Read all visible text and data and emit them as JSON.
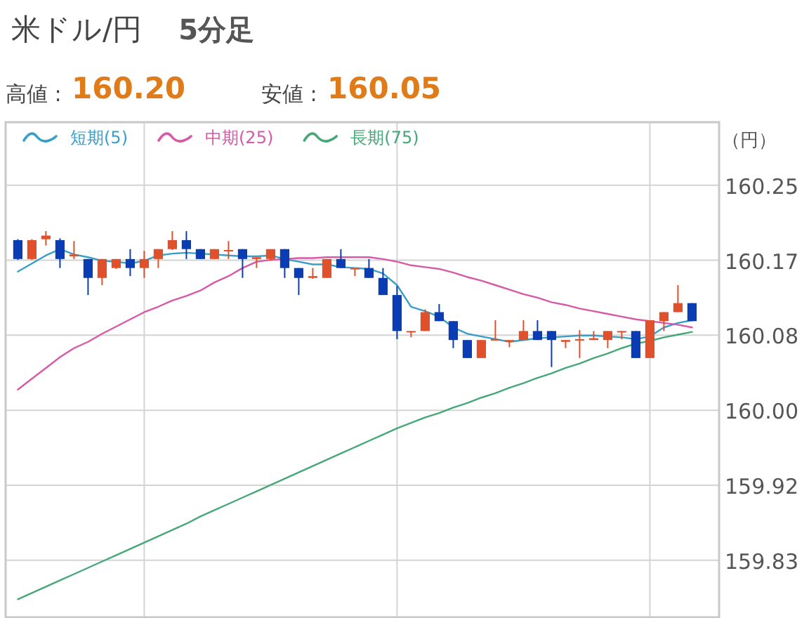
{
  "chart_data": {
    "type": "candlestick",
    "title": "米ドル/円",
    "subtitle": "5分足",
    "ylabel": "（円）",
    "annotations": [
      "高値 :",
      "160.20",
      "安値 :",
      "160.05"
    ],
    "categories": [
      null,
      null,
      null,
      null,
      null,
      null,
      null,
      null,
      null,
      null,
      null,
      null,
      null,
      null,
      null,
      null,
      null,
      null,
      null,
      null,
      null,
      null,
      null,
      null,
      null,
      null,
      null,
      null,
      null,
      null,
      null,
      null,
      null,
      null,
      null,
      null,
      null,
      null,
      null,
      null,
      null,
      null,
      null,
      null,
      null,
      null,
      null,
      null,
      null
    ],
    "ohlc": [
      [
        160.189,
        160.19,
        160.167,
        160.168
      ],
      [
        160.168,
        160.19,
        160.167,
        160.189
      ],
      [
        160.19,
        160.199,
        160.183,
        160.194
      ],
      [
        160.189,
        160.191,
        160.158,
        160.168
      ],
      [
        160.171,
        160.188,
        160.168,
        160.173
      ],
      [
        160.168,
        160.168,
        160.128,
        160.147
      ],
      [
        160.147,
        160.168,
        160.139,
        160.168
      ],
      [
        160.158,
        160.168,
        160.157,
        160.168
      ],
      [
        160.168,
        160.179,
        160.149,
        160.158
      ],
      [
        160.158,
        160.177,
        160.147,
        160.168
      ],
      [
        160.168,
        160.179,
        160.158,
        160.179
      ],
      [
        160.179,
        160.199,
        160.178,
        160.189
      ],
      [
        160.189,
        160.199,
        160.168,
        160.179
      ],
      [
        160.179,
        160.179,
        160.168,
        160.168
      ],
      [
        160.168,
        160.179,
        160.168,
        160.179
      ],
      [
        160.177,
        160.188,
        160.168,
        160.178
      ],
      [
        160.179,
        160.179,
        160.147,
        160.168
      ],
      [
        160.168,
        160.17,
        160.158,
        160.17
      ],
      [
        160.168,
        160.179,
        160.166,
        160.179
      ],
      [
        160.179,
        160.179,
        160.147,
        160.158
      ],
      [
        160.158,
        160.158,
        160.128,
        160.147
      ],
      [
        160.147,
        160.158,
        160.146,
        160.149
      ],
      [
        160.147,
        160.168,
        160.147,
        160.168
      ],
      [
        160.168,
        160.179,
        160.158,
        160.158
      ],
      [
        160.157,
        160.158,
        160.149,
        160.158
      ],
      [
        160.158,
        160.168,
        160.147,
        160.147
      ],
      [
        160.147,
        160.158,
        160.128,
        160.128
      ],
      [
        160.128,
        160.138,
        160.079,
        160.088
      ],
      [
        160.087,
        160.088,
        160.081,
        160.088
      ],
      [
        160.088,
        160.112,
        160.088,
        160.109
      ],
      [
        160.109,
        160.118,
        160.099,
        160.099
      ],
      [
        160.099,
        160.099,
        160.069,
        160.078
      ],
      [
        160.078,
        160.078,
        160.058,
        160.058
      ],
      [
        160.058,
        160.078,
        160.058,
        160.078
      ],
      [
        160.078,
        160.1,
        160.078,
        160.079
      ],
      [
        160.076,
        160.078,
        160.07,
        160.078
      ],
      [
        160.078,
        160.1,
        160.078,
        160.088
      ],
      [
        160.088,
        160.1,
        160.078,
        160.078
      ],
      [
        160.088,
        160.088,
        160.048,
        160.078
      ],
      [
        160.076,
        160.078,
        160.069,
        160.078
      ],
      [
        160.078,
        160.089,
        160.058,
        160.079
      ],
      [
        160.078,
        160.088,
        160.078,
        160.08
      ],
      [
        160.078,
        160.088,
        160.069,
        160.088
      ],
      [
        160.087,
        160.088,
        160.079,
        160.088
      ],
      [
        160.088,
        160.088,
        160.058,
        160.058
      ],
      [
        160.058,
        160.1,
        160.058,
        160.1
      ],
      [
        160.099,
        160.109,
        160.088,
        160.109
      ],
      [
        160.109,
        160.139,
        160.109,
        160.119
      ],
      [
        160.119,
        160.119,
        160.099,
        160.099
      ]
    ],
    "colors": [
      "#0a3cb4",
      "#e0502a",
      "#e0502a",
      "#0a3cb4",
      "#e0502a",
      "#0a3cb4",
      "#e0502a",
      "#e0502a",
      "#0a3cb4",
      "#e0502a",
      "#e0502a",
      "#e0502a",
      "#0a3cb4",
      "#0a3cb4",
      "#e0502a",
      "#e0502a",
      "#0a3cb4",
      "#e0502a",
      "#e0502a",
      "#0a3cb4",
      "#0a3cb4",
      "#e0502a",
      "#e0502a",
      "#0a3cb4",
      "#e0502a",
      "#0a3cb4",
      "#0a3cb4",
      "#0a3cb4",
      "#e0502a",
      "#e0502a",
      "#0a3cb4",
      "#0a3cb4",
      "#0a3cb4",
      "#e0502a",
      "#e0502a",
      "#e0502a",
      "#e0502a",
      "#0a3cb4",
      "#0a3cb4",
      "#e0502a",
      "#e0502a",
      "#e0502a",
      "#e0502a",
      "#e0502a",
      "#0a3cb4",
      "#e0502a",
      "#e0502a",
      "#e0502a",
      "#0a3cb4"
    ],
    "series": [
      {
        "name": "短期(5)",
        "type": "line",
        "color": "#3a9fc8",
        "values": [
          160.154,
          160.163,
          160.172,
          160.179,
          160.173,
          160.17,
          160.166,
          160.165,
          160.163,
          160.166,
          160.172,
          160.174,
          160.175,
          160.174,
          160.173,
          160.172,
          160.171,
          160.171,
          160.172,
          160.168,
          160.165,
          160.162,
          160.162,
          160.159,
          160.158,
          160.157,
          160.152,
          160.139,
          160.115,
          160.11,
          160.104,
          160.092,
          160.085,
          160.082,
          160.079,
          160.076,
          160.078,
          160.08,
          160.081,
          160.082,
          160.083,
          160.083,
          160.082,
          160.081,
          160.079,
          160.082,
          160.092,
          160.097,
          160.1
        ]
      },
      {
        "name": "中期(25)",
        "type": "line",
        "color": "#d65aa6",
        "values": [
          160.023,
          160.035,
          160.047,
          160.059,
          160.069,
          160.076,
          160.085,
          160.093,
          160.101,
          160.109,
          160.115,
          160.122,
          160.127,
          160.133,
          160.142,
          160.149,
          160.158,
          160.165,
          160.167,
          160.168,
          160.169,
          160.169,
          160.17,
          160.17,
          160.17,
          160.17,
          160.168,
          160.165,
          160.161,
          160.159,
          160.157,
          160.153,
          160.148,
          160.144,
          160.139,
          160.134,
          160.129,
          160.125,
          160.12,
          160.117,
          160.113,
          160.11,
          160.107,
          160.104,
          160.101,
          160.099,
          160.097,
          160.095,
          160.092
        ]
      },
      {
        "name": "長期(75)",
        "type": "line",
        "color": "#46a878",
        "values": [
          159.79,
          159.797,
          159.804,
          159.811,
          159.818,
          159.825,
          159.832,
          159.839,
          159.846,
          159.853,
          159.86,
          159.867,
          159.874,
          159.882,
          159.889,
          159.896,
          159.903,
          159.91,
          159.917,
          159.924,
          159.931,
          159.938,
          159.945,
          159.952,
          159.959,
          159.966,
          159.973,
          159.98,
          159.986,
          159.992,
          159.997,
          160.003,
          160.008,
          160.014,
          160.019,
          160.025,
          160.03,
          160.036,
          160.041,
          160.047,
          160.052,
          160.058,
          160.063,
          160.069,
          160.074,
          160.077,
          160.081,
          160.084,
          160.087
        ]
      }
    ],
    "ylim": [
      159.77,
      160.32
    ],
    "yticks": [
      160.25,
      {
        "value": 160.16667,
        "label": "160.17"
      },
      {
        "value": 160.08333,
        "label": "160.08"
      },
      {
        "value": 160,
        "label": "160.00"
      },
      {
        "value": 159.91667,
        "label": "159.92"
      },
      {
        "value": 159.83333,
        "label": "159.83"
      }
    ],
    "grid": true,
    "legend": "top left",
    "tick_labels": "y"
  }
}
